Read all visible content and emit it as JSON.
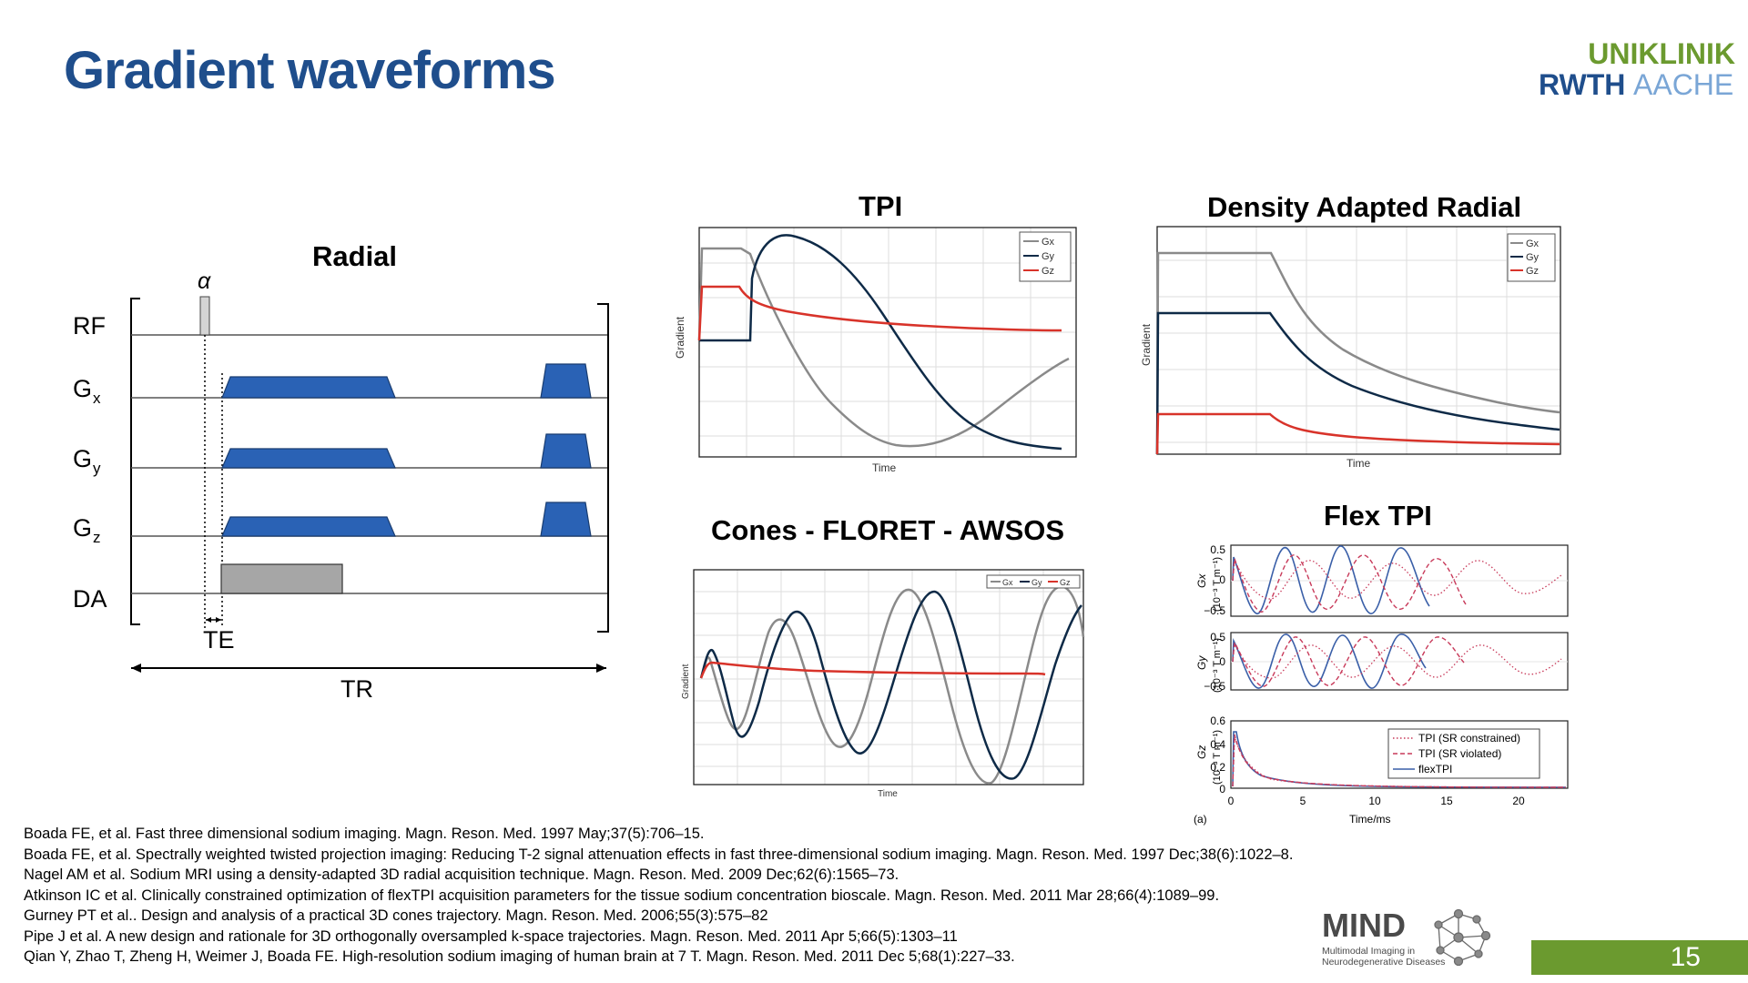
{
  "slide": {
    "title": "Gradient waveforms",
    "page_number": "15"
  },
  "logo": {
    "line1": "UNIKLINIK",
    "line2a": "RWTH",
    "line2b": "AACHEN",
    "colors": {
      "green": "#6b9a2f",
      "blue": "#1f4e8c",
      "lightblue": "#7aa6d6"
    }
  },
  "radial": {
    "title": "Radial",
    "alpha": "α",
    "rows": {
      "rf": "RF",
      "gx": "G",
      "gx_sub": "x",
      "gy": "G",
      "gy_sub": "y",
      "gz": "G",
      "gz_sub": "z",
      "da": "DA"
    },
    "te": "TE",
    "tr": "TR"
  },
  "tpi": {
    "title": "TPI",
    "ylabel": "Gradient",
    "xlabel": "Time",
    "legend": [
      "Gx",
      "Gy",
      "Gz"
    ]
  },
  "dar": {
    "title": "Density Adapted Radial",
    "ylabel": "Gradient",
    "xlabel": "Time",
    "legend": [
      "Gx",
      "Gy",
      "Gz"
    ]
  },
  "cones": {
    "title": "Cones - FLORET - AWSOS",
    "ylabel": "Gradient",
    "xlabel": "Time",
    "legend": [
      "Gx",
      "Gy",
      "Gz"
    ]
  },
  "flex": {
    "title": "Flex TPI",
    "gx_label": "Gx",
    "gy_label": "Gy",
    "gz_label": "Gz",
    "unit_label": "(10⁻³ T m⁻¹)",
    "gx_ticks": [
      "0.5",
      "0",
      "−0.5"
    ],
    "gy_ticks": [
      "0.5",
      "0",
      "−0.5"
    ],
    "gz_ticks": [
      "0.6",
      "0.4",
      "0.2",
      "0"
    ],
    "x_ticks": [
      "0",
      "5",
      "10",
      "15",
      "20"
    ],
    "xlabel": "Time/ms",
    "panel_label": "(a)",
    "legend": [
      "TPI (SR constrained)",
      "TPI (SR violated)",
      "flexTPI"
    ]
  },
  "series_colors": {
    "gx": "#8a8a8a",
    "gy": "#0e2a47",
    "gz": "#d8332a",
    "flex_blue": "#3a5fa8",
    "flex_red": "#c83a5a"
  },
  "references": [
    "Boada FE, et al. Fast three dimensional sodium imaging. Magn. Reson. Med. 1997 May;37(5):706–15.",
    "Boada FE, et al. Spectrally weighted twisted projection imaging: Reducing T-2 signal attenuation effects in fast three-dimensional sodium imaging. Magn. Reson. Med. 1997 Dec;38(6):1022–8.",
    "Nagel AM et al. Sodium MRI using a density-adapted 3D radial acquisition technique. Magn. Reson. Med. 2009 Dec;62(6):1565–73.",
    "Atkinson IC et al. Clinically constrained optimization of flexTPI acquisition parameters for the tissue sodium concentration bioscale. Magn. Reson. Med. 2011 Mar 28;66(4):1089–99.",
    "Gurney PT et al.. Design and analysis of a practical 3D cones trajectory. Magn. Reson. Med. 2006;55(3):575–82",
    "Pipe J et al. A new design and rationale for 3D orthogonally oversampled k-space trajectories. Magn. Reson. Med. 2011 Apr 5;66(5):1303–11",
    "Qian Y, Zhao T, Zheng H, Weimer J, Boada FE. High-resolution sodium imaging of human brain at 7 T. Magn. Reson. Med. 2011 Dec 5;68(1):227–33."
  ],
  "mind_logo": {
    "name": "MIND",
    "line1": "Multimodal Imaging in",
    "line2": "Neurodegenerative Diseases"
  }
}
